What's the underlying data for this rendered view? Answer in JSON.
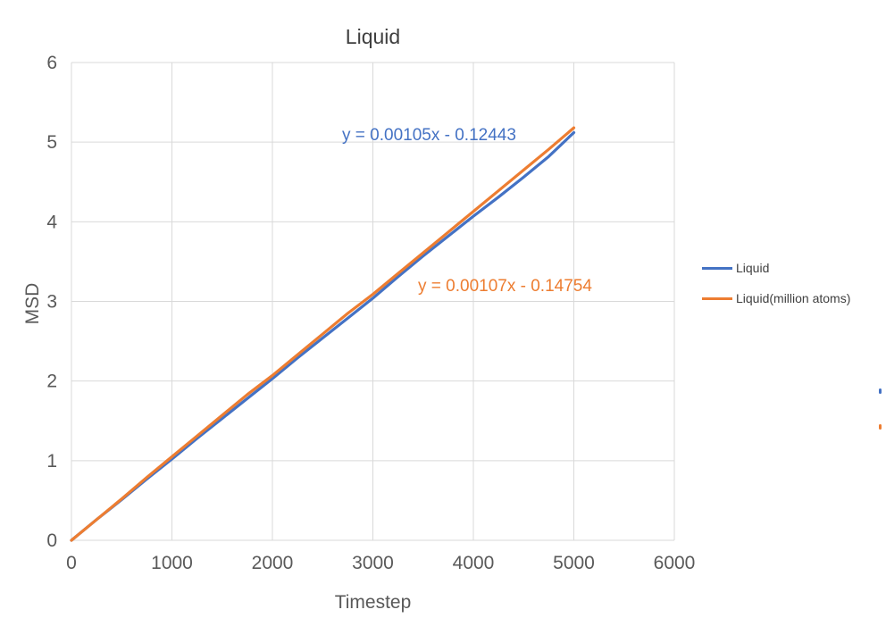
{
  "chart_data": {
    "type": "line",
    "title": "Liquid",
    "xlabel": "Timestep",
    "ylabel": "MSD",
    "xlim": [
      0,
      6000
    ],
    "ylim": [
      0,
      6
    ],
    "x_ticks": [
      0,
      1000,
      2000,
      3000,
      4000,
      5000,
      6000
    ],
    "y_ticks": [
      0,
      1,
      2,
      3,
      4,
      5,
      6
    ],
    "grid": true,
    "legend_position": "right",
    "gridline_color": "#d9d9d9",
    "tick_label_color": "#595959",
    "x": [
      0,
      250,
      500,
      750,
      1000,
      1250,
      1500,
      1750,
      2000,
      2250,
      2500,
      2750,
      3000,
      3250,
      3500,
      3750,
      4000,
      4250,
      4500,
      4750,
      5000
    ],
    "series": [
      {
        "name": "Liquid",
        "color": "#4472C4",
        "values": [
          0,
          0.26,
          0.51,
          0.77,
          1.02,
          1.28,
          1.53,
          1.78,
          2.03,
          2.29,
          2.54,
          2.79,
          3.04,
          3.31,
          3.57,
          3.82,
          4.07,
          4.31,
          4.56,
          4.82,
          5.12
        ],
        "trendline_label": "y = 0.00105x - 0.12443"
      },
      {
        "name": "Liquid(million atoms)",
        "color": "#ED7D31",
        "values": [
          0,
          0.26,
          0.52,
          0.79,
          1.05,
          1.31,
          1.57,
          1.83,
          2.07,
          2.33,
          2.59,
          2.85,
          3.09,
          3.35,
          3.61,
          3.87,
          4.13,
          4.39,
          4.65,
          4.91,
          5.18
        ],
        "trendline_label": "y = 0.00107x - 0.14754"
      }
    ]
  }
}
